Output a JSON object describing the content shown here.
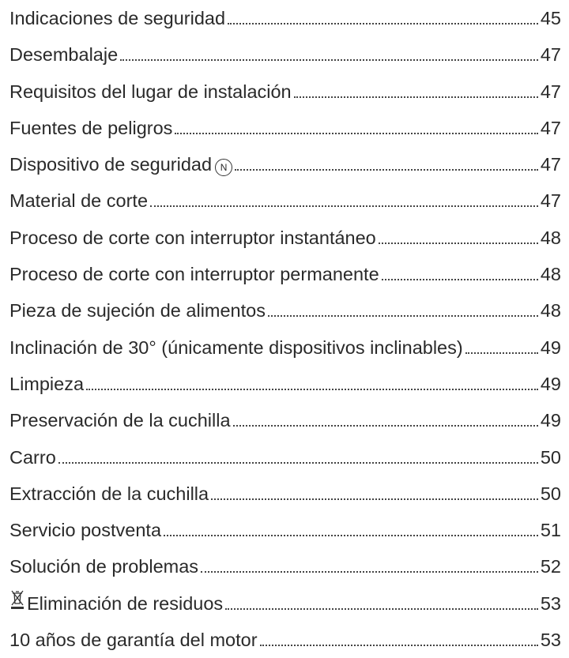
{
  "toc": {
    "entries": [
      {
        "title": "Indicaciones de seguridad",
        "page": "45"
      },
      {
        "title": "Desembalaje",
        "page": "47"
      },
      {
        "title": "Requisitos del lugar de instalación",
        "page": "47"
      },
      {
        "title": "Fuentes de peligros",
        "page": "47"
      },
      {
        "title": "Dispositivo de seguridad",
        "icon": "N",
        "page": "47"
      },
      {
        "title": "Material de corte",
        "page": "47"
      },
      {
        "title": "Proceso de corte con interruptor instantáneo",
        "page": "48"
      },
      {
        "title": "Proceso de corte con interruptor permanente",
        "page": "48"
      },
      {
        "title": "Pieza de sujeción de alimentos",
        "page": "48"
      },
      {
        "title": "Inclinación de 30° (únicamente dispositivos inclinables)",
        "page": "49"
      },
      {
        "title": "Limpieza",
        "page": "49"
      },
      {
        "title": "Preservación de la cuchilla",
        "page": "49"
      },
      {
        "title": "Carro",
        "page": "50"
      },
      {
        "title": "Extracción de la cuchilla",
        "page": "50"
      },
      {
        "title": "Servicio postventa",
        "page": "51"
      },
      {
        "title": "Solución de problemas",
        "page": "52"
      },
      {
        "title": "Eliminación de residuos",
        "page": "53"
      },
      {
        "title": "10 años de garantía del motor",
        "page": "53"
      }
    ]
  }
}
